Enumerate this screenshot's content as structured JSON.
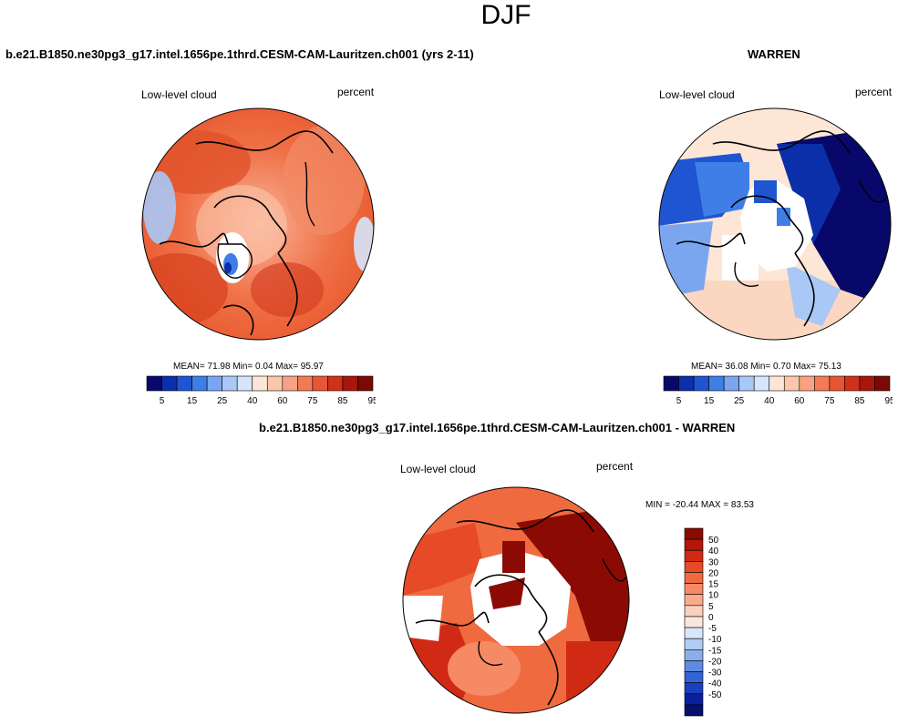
{
  "page": {
    "title": "DJF",
    "case_title": "b.e21.B1850.ne30pg3_g17.intel.1656pe.1thrd.CESM-CAM-Lauritzen.ch001 (yrs 2-11)",
    "obs_title": "WARREN",
    "diff_title": "b.e21.B1850.ne30pg3_g17.intel.1656pe.1thrd.CESM-CAM-Lauritzen.ch001 - WARREN"
  },
  "panels": {
    "model": {
      "variable": "Low-level cloud",
      "units": "percent",
      "stats": "MEAN= 71.98 Min= 0.04 Max= 95.97",
      "stats_parts": {
        "mean": "71.98",
        "min": "0.04",
        "max": "95.97"
      }
    },
    "obs": {
      "variable": "Low-level cloud",
      "units": "percent",
      "stats": "MEAN= 36.08 Min= 0.70 Max= 75.13"
    },
    "diff": {
      "variable": "Low-level cloud",
      "units": "percent",
      "minmax": "MIN = -20.44 MAX = 83.53"
    }
  },
  "colorbars": {
    "horizontal_labels": [
      "5",
      "15",
      "25",
      "40",
      "60",
      "75",
      "85",
      "95"
    ],
    "horizontal_colors": [
      "#08086b",
      "#0a2fa8",
      "#1f55d0",
      "#3f7ee6",
      "#7aa6f0",
      "#a9c8f5",
      "#d6e6fa",
      "#fde6d6",
      "#fbc7ac",
      "#f7a283",
      "#f27a58",
      "#e85533",
      "#d13019",
      "#a8160c",
      "#7a0a05"
    ],
    "vertical_labels": [
      "50",
      "40",
      "30",
      "20",
      "15",
      "10",
      "5",
      "0",
      "-5",
      "-10",
      "-15",
      "-20",
      "-30",
      "-40",
      "-50"
    ],
    "vertical_colors": [
      "#8b0b04",
      "#b3150a",
      "#d12a14",
      "#e64a26",
      "#f06a40",
      "#f58a64",
      "#f9ab8c",
      "#fcd1bc",
      "#fbe6dc",
      "#d8e6fa",
      "#b2cdf3",
      "#8aaeec",
      "#5e8ae2",
      "#3363d6",
      "#1b3fc1",
      "#0b1f9a",
      "#050f6e"
    ]
  },
  "icons": [
    "globe-map-icon"
  ]
}
